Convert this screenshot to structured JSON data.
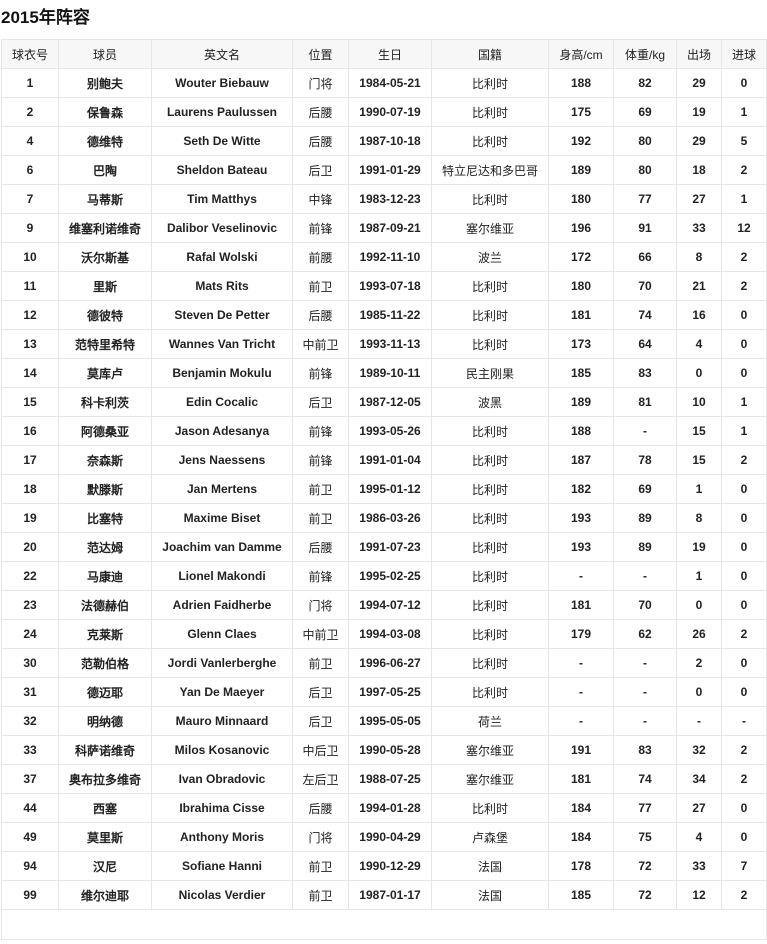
{
  "title": "2015年阵容",
  "columns": [
    "球衣号",
    "球员",
    "英文名",
    "位置",
    "生日",
    "国籍",
    "身高/cm",
    "体重/kg",
    "出场",
    "进球"
  ],
  "rows": [
    [
      "1",
      "别鲍夫",
      "Wouter Biebauw",
      "门将",
      "1984-05-21",
      "比利时",
      "188",
      "82",
      "29",
      "0"
    ],
    [
      "2",
      "保鲁森",
      "Laurens Paulussen",
      "后腰",
      "1990-07-19",
      "比利时",
      "175",
      "69",
      "19",
      "1"
    ],
    [
      "4",
      "德维特",
      "Seth De Witte",
      "后腰",
      "1987-10-18",
      "比利时",
      "192",
      "80",
      "29",
      "5"
    ],
    [
      "6",
      "巴陶",
      "Sheldon Bateau",
      "后卫",
      "1991-01-29",
      "特立尼达和多巴哥",
      "189",
      "80",
      "18",
      "2"
    ],
    [
      "7",
      "马蒂斯",
      "Tim Matthys",
      "中锋",
      "1983-12-23",
      "比利时",
      "180",
      "77",
      "27",
      "1"
    ],
    [
      "9",
      "维塞利诺维奇",
      "Dalibor Veselinovic",
      "前锋",
      "1987-09-21",
      "塞尔维亚",
      "196",
      "91",
      "33",
      "12"
    ],
    [
      "10",
      "沃尔斯基",
      "Rafal Wolski",
      "前腰",
      "1992-11-10",
      "波兰",
      "172",
      "66",
      "8",
      "2"
    ],
    [
      "11",
      "里斯",
      "Mats Rits",
      "前卫",
      "1993-07-18",
      "比利时",
      "180",
      "70",
      "21",
      "2"
    ],
    [
      "12",
      "德彼特",
      "Steven De Petter",
      "后腰",
      "1985-11-22",
      "比利时",
      "181",
      "74",
      "16",
      "0"
    ],
    [
      "13",
      "范特里希特",
      "Wannes Van Tricht",
      "中前卫",
      "1993-11-13",
      "比利时",
      "173",
      "64",
      "4",
      "0"
    ],
    [
      "14",
      "莫库卢",
      "Benjamin Mokulu",
      "前锋",
      "1989-10-11",
      "民主刚果",
      "185",
      "83",
      "0",
      "0"
    ],
    [
      "15",
      "科卡利茨",
      "Edin Cocalic",
      "后卫",
      "1987-12-05",
      "波黑",
      "189",
      "81",
      "10",
      "1"
    ],
    [
      "16",
      "阿德桑亚",
      "Jason Adesanya",
      "前锋",
      "1993-05-26",
      "比利时",
      "188",
      "-",
      "15",
      "1"
    ],
    [
      "17",
      "奈森斯",
      "Jens Naessens",
      "前锋",
      "1991-01-04",
      "比利时",
      "187",
      "78",
      "15",
      "2"
    ],
    [
      "18",
      "默滕斯",
      "Jan Mertens",
      "前卫",
      "1995-01-12",
      "比利时",
      "182",
      "69",
      "1",
      "0"
    ],
    [
      "19",
      "比塞特",
      "Maxime Biset",
      "前卫",
      "1986-03-26",
      "比利时",
      "193",
      "89",
      "8",
      "0"
    ],
    [
      "20",
      "范达姆",
      "Joachim van Damme",
      "后腰",
      "1991-07-23",
      "比利时",
      "193",
      "89",
      "19",
      "0"
    ],
    [
      "22",
      "马康迪",
      "Lionel Makondi",
      "前锋",
      "1995-02-25",
      "比利时",
      "-",
      "-",
      "1",
      "0"
    ],
    [
      "23",
      "法德赫伯",
      "Adrien Faidherbe",
      "门将",
      "1994-07-12",
      "比利时",
      "181",
      "70",
      "0",
      "0"
    ],
    [
      "24",
      "克莱斯",
      "Glenn Claes",
      "中前卫",
      "1994-03-08",
      "比利时",
      "179",
      "62",
      "26",
      "2"
    ],
    [
      "30",
      "范勒伯格",
      "Jordi Vanlerberghe",
      "前卫",
      "1996-06-27",
      "比利时",
      "-",
      "-",
      "2",
      "0"
    ],
    [
      "31",
      "德迈耶",
      "Yan De Maeyer",
      "后卫",
      "1997-05-25",
      "比利时",
      "-",
      "-",
      "0",
      "0"
    ],
    [
      "32",
      "明纳德",
      "Mauro Minnaard",
      "后卫",
      "1995-05-05",
      "荷兰",
      "-",
      "-",
      "-",
      "-"
    ],
    [
      "33",
      "科萨诺维奇",
      "Milos Kosanovic",
      "中后卫",
      "1990-05-28",
      "塞尔维亚",
      "191",
      "83",
      "32",
      "2"
    ],
    [
      "37",
      "奥布拉多维奇",
      "Ivan Obradovic",
      "左后卫",
      "1988-07-25",
      "塞尔维亚",
      "181",
      "74",
      "34",
      "2"
    ],
    [
      "44",
      "西塞",
      "Ibrahima Cisse",
      "后腰",
      "1994-01-28",
      "比利时",
      "184",
      "77",
      "27",
      "0"
    ],
    [
      "49",
      "莫里斯",
      "Anthony Moris",
      "门将",
      "1990-04-29",
      "卢森堡",
      "184",
      "75",
      "4",
      "0"
    ],
    [
      "94",
      "汉尼",
      "Sofiane Hanni",
      "前卫",
      "1990-12-29",
      "法国",
      "178",
      "72",
      "33",
      "7"
    ],
    [
      "99",
      "维尔迪耶",
      "Nicolas Verdier",
      "前卫",
      "1987-01-17",
      "法国",
      "185",
      "72",
      "12",
      "2"
    ]
  ]
}
